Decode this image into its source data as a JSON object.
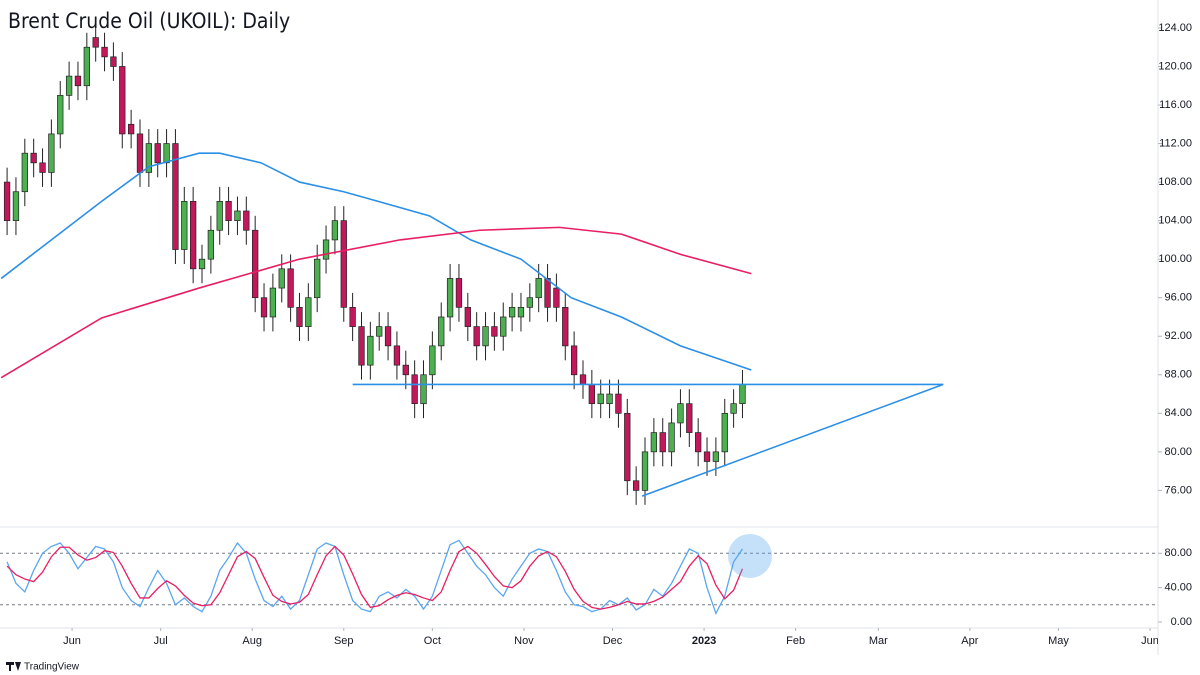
{
  "chart_data": [
    {
      "type": "candlestick",
      "title": "Brent Crude Oil (UKOIL): Daily",
      "xlim": [
        6.6,
        398.7
      ],
      "ylim": [
        72.2,
        126.9
      ],
      "yticks": [
        {
          "value": 76,
          "label": "76.00"
        },
        {
          "value": 80,
          "label": "80.00"
        },
        {
          "value": 84,
          "label": "84.00"
        },
        {
          "value": 88,
          "label": "88.00"
        },
        {
          "value": 92,
          "label": "92.00"
        },
        {
          "value": 96,
          "label": "96.00"
        },
        {
          "value": 100,
          "label": "100.00"
        },
        {
          "value": 104,
          "label": "104.00"
        },
        {
          "value": 108,
          "label": "108.00"
        },
        {
          "value": 112,
          "label": "112.00"
        },
        {
          "value": 116,
          "label": "116.00"
        },
        {
          "value": 120,
          "label": "120.00"
        },
        {
          "value": 124,
          "label": "124.00"
        }
      ],
      "up_color": "#4caf50",
      "down_color": "#c2185b",
      "wick_color": "#222222",
      "x": [
        9,
        12,
        15,
        18,
        21,
        24,
        27,
        30,
        33,
        36,
        39,
        42,
        45,
        48,
        51,
        54,
        57,
        60,
        63,
        66,
        69,
        72,
        75,
        78,
        81,
        84,
        87,
        90,
        93,
        96,
        99,
        102,
        105,
        108,
        111,
        114,
        117,
        120,
        123,
        126,
        129,
        132,
        135,
        138,
        141,
        144,
        147,
        150,
        153,
        156,
        159,
        162,
        165,
        168,
        171,
        174,
        177,
        180,
        183,
        186,
        189,
        192,
        195,
        198,
        201,
        204,
        207,
        210,
        213,
        216,
        219,
        222,
        225,
        228,
        231,
        234,
        237,
        240,
        243,
        246,
        249,
        252,
        255,
        258
      ],
      "open": [
        108,
        104,
        107,
        111,
        110,
        109,
        113,
        117,
        119,
        118,
        123,
        122,
        121,
        120,
        114,
        113,
        109,
        112,
        110,
        112,
        101,
        106,
        99,
        100,
        103,
        106,
        104,
        105,
        103,
        96,
        94,
        97,
        99,
        95,
        93,
        96,
        100,
        102,
        104,
        95,
        93,
        89,
        92,
        93,
        91,
        89,
        88,
        85,
        88,
        91,
        94,
        98,
        95,
        93,
        91,
        93,
        92,
        94,
        94,
        95,
        96,
        98,
        97,
        95,
        91,
        88,
        87,
        85,
        85,
        86,
        84,
        77,
        76,
        80,
        82,
        80,
        83,
        85,
        82,
        80,
        79,
        80,
        84,
        85
      ],
      "high": [
        109.5,
        108.5,
        112.5,
        112.5,
        111.5,
        114.5,
        118.5,
        120.5,
        120.5,
        123.5,
        124.5,
        123.5,
        122.5,
        121.5,
        115.5,
        114.5,
        113.5,
        113.5,
        113.5,
        113.5,
        107.5,
        107.5,
        101.5,
        104.5,
        107.5,
        107.5,
        106.5,
        106.5,
        104.5,
        97.5,
        98.5,
        100.5,
        100.5,
        96.5,
        97.5,
        101.5,
        103.5,
        105.5,
        105.5,
        96.5,
        94.5,
        93.5,
        94.5,
        94.5,
        92.5,
        90.5,
        89.5,
        89.5,
        92.5,
        95.5,
        99.5,
        99.5,
        96.5,
        94.5,
        94.5,
        94.5,
        95.5,
        96.5,
        96.5,
        97.5,
        99.5,
        99.5,
        98.5,
        96.5,
        92.5,
        89.5,
        88.5,
        87.5,
        87.5,
        87.5,
        85.5,
        78.5,
        81.5,
        83.5,
        83.5,
        84.5,
        86.5,
        86.5,
        83.5,
        81.5,
        81.5,
        85.5,
        86.5,
        88.5
      ],
      "low": [
        102.5,
        102.5,
        105.5,
        108.5,
        107.5,
        107.5,
        111.5,
        115.5,
        116.5,
        116.5,
        120.5,
        119.5,
        118.5,
        111.5,
        111.5,
        107.5,
        107.5,
        108.5,
        108.5,
        99.5,
        99.5,
        97.5,
        97.5,
        98.5,
        101.5,
        102.5,
        102.5,
        101.5,
        94.5,
        92.5,
        92.5,
        95.5,
        93.5,
        91.5,
        91.5,
        94.5,
        98.5,
        100.5,
        93.5,
        91.5,
        87.5,
        87.5,
        90.5,
        89.5,
        87.5,
        86.5,
        83.5,
        83.5,
        86.5,
        89.5,
        92.5,
        93.5,
        91.5,
        89.5,
        89.5,
        90.5,
        90.5,
        92.5,
        92.5,
        93.5,
        94.5,
        93.5,
        93.5,
        89.5,
        86.5,
        85.5,
        83.5,
        83.5,
        83.5,
        82.5,
        75.5,
        74.5,
        74.5,
        78.5,
        78.5,
        78.5,
        81.5,
        80.5,
        78.5,
        77.5,
        77.5,
        78.5,
        82.5,
        83.5
      ],
      "close": [
        104,
        107,
        111,
        110,
        109,
        113,
        117,
        119,
        118,
        122,
        122,
        121,
        120,
        113,
        113,
        109,
        112,
        110,
        112,
        101,
        106,
        99,
        100,
        103,
        106,
        104,
        105,
        103,
        96,
        94,
        97,
        99,
        95,
        93,
        96,
        100,
        102,
        104,
        95,
        93,
        89,
        92,
        93,
        91,
        89,
        88,
        85,
        88,
        91,
        94,
        98,
        95,
        93,
        91,
        93,
        92,
        94,
        95,
        95,
        96,
        98,
        95,
        95,
        91,
        88,
        87,
        85,
        86,
        86,
        84,
        77,
        76,
        80,
        82,
        80,
        83,
        85,
        82,
        80,
        79,
        80,
        84,
        85,
        87
      ],
      "lines": [
        {
          "color": "#2a8fe6",
          "x": [
            7,
            24,
            41,
            57,
            74,
            81,
            95,
            108,
            123,
            152,
            166,
            183,
            200,
            217,
            237,
            261
          ],
          "values": [
            98,
            102,
            106,
            109.6,
            111,
            111,
            110,
            108,
            107,
            104.5,
            102,
            100,
            96,
            94,
            91,
            88.5
          ]
        },
        {
          "color": "#e91e63",
          "x": [
            7,
            41,
            74,
            108,
            142,
            169,
            196,
            217,
            237,
            261
          ],
          "values": [
            87.7,
            93.9,
            97,
            100,
            102,
            103,
            103.3,
            102.6,
            100.5,
            98.5
          ]
        },
        {
          "color": "#2a8fe6",
          "x": [
            126,
            326
          ],
          "values": [
            87,
            87
          ]
        },
        {
          "color": "#2a8fe6",
          "x": [
            224,
            326
          ],
          "values": [
            75.4,
            87
          ]
        }
      ]
    },
    {
      "type": "line",
      "xlim": [
        6.6,
        398.7
      ],
      "ylim": [
        -7,
        110.6
      ],
      "yticks": [
        {
          "value": 0,
          "label": "0.00"
        },
        {
          "value": 40,
          "label": "40.00"
        },
        {
          "value": 80,
          "label": "80.00"
        }
      ],
      "levels": [
        80,
        20
      ],
      "xticks": [
        {
          "value": 31,
          "label": "Jun"
        },
        {
          "value": 61,
          "label": "Jul"
        },
        {
          "value": 92,
          "label": "Aug"
        },
        {
          "value": 123,
          "label": "Sep"
        },
        {
          "value": 153,
          "label": "Oct"
        },
        {
          "value": 184,
          "label": "Nov"
        },
        {
          "value": 214,
          "label": "Dec"
        },
        {
          "value": 245,
          "label": "2023"
        },
        {
          "value": 276,
          "label": "Feb"
        },
        {
          "value": 304,
          "label": "Mar"
        },
        {
          "value": 335,
          "label": "Apr"
        },
        {
          "value": 365,
          "label": "May"
        },
        {
          "value": 396,
          "label": "Jun"
        }
      ],
      "x": [
        9,
        12,
        15,
        18,
        21,
        24,
        27,
        30,
        33,
        36,
        39,
        42,
        45,
        48,
        51,
        54,
        57,
        60,
        63,
        66,
        69,
        72,
        75,
        78,
        81,
        84,
        87,
        90,
        93,
        96,
        99,
        102,
        105,
        108,
        111,
        114,
        117,
        120,
        123,
        126,
        129,
        132,
        135,
        138,
        141,
        144,
        147,
        150,
        153,
        156,
        159,
        162,
        165,
        168,
        171,
        174,
        177,
        180,
        183,
        186,
        189,
        192,
        195,
        198,
        201,
        204,
        207,
        210,
        213,
        216,
        219,
        222,
        225,
        228,
        231,
        234,
        237,
        240,
        243,
        246,
        249,
        252,
        255,
        258
      ],
      "series": [
        {
          "color": "#5aa7ef",
          "values": [
            70,
            45,
            35,
            60,
            80,
            88,
            92,
            80,
            62,
            75,
            88,
            85,
            70,
            40,
            25,
            18,
            40,
            60,
            45,
            20,
            28,
            18,
            12,
            30,
            60,
            75,
            92,
            80,
            50,
            25,
            18,
            30,
            15,
            25,
            55,
            85,
            92,
            88,
            55,
            25,
            15,
            12,
            30,
            35,
            28,
            38,
            30,
            15,
            30,
            60,
            90,
            95,
            80,
            65,
            55,
            40,
            30,
            50,
            65,
            80,
            85,
            82,
            60,
            35,
            20,
            18,
            12,
            15,
            25,
            20,
            28,
            14,
            20,
            38,
            30,
            45,
            65,
            85,
            80,
            40,
            10,
            30,
            70,
            85
          ]
        },
        {
          "color": "#e91e63",
          "values": [
            65,
            55,
            50,
            47,
            58,
            76,
            87,
            87,
            78,
            72,
            75,
            83,
            81,
            65,
            45,
            28,
            28,
            39,
            48,
            42,
            31,
            22,
            19,
            20,
            34,
            55,
            76,
            82,
            74,
            52,
            31,
            24,
            21,
            23,
            32,
            55,
            77,
            88,
            78,
            56,
            32,
            17,
            19,
            26,
            31,
            34,
            32,
            28,
            25,
            35,
            60,
            82,
            88,
            80,
            67,
            53,
            42,
            40,
            48,
            65,
            77,
            82,
            76,
            59,
            38,
            24,
            17,
            15,
            17,
            20,
            24,
            21,
            21,
            24,
            29,
            38,
            47,
            65,
            77,
            68,
            43,
            27,
            37,
            62
          ]
        }
      ]
    }
  ],
  "footer": "TradingView"
}
